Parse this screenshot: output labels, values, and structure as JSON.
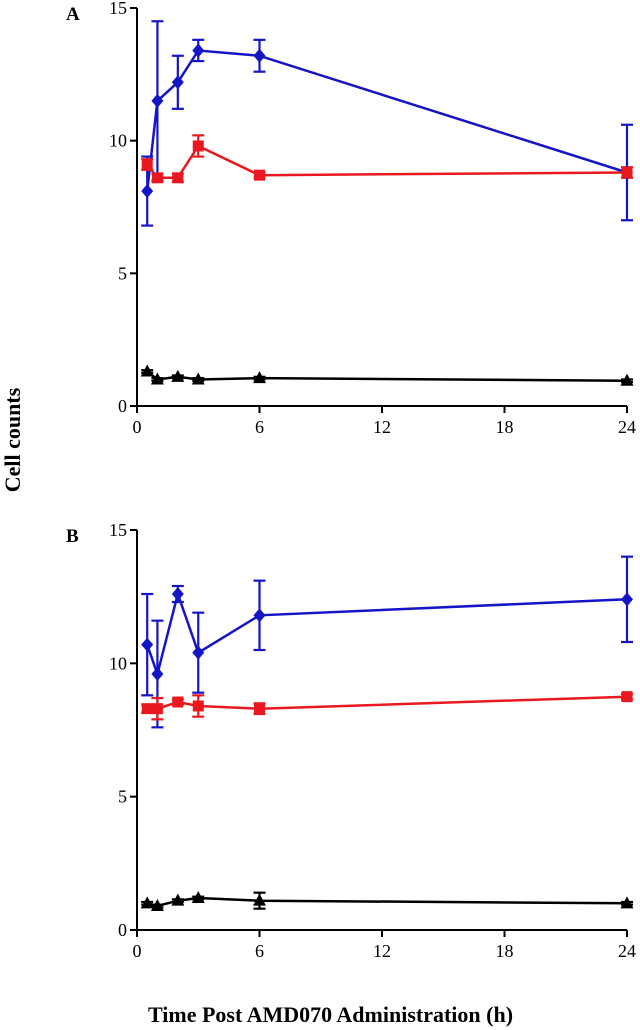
{
  "figure": {
    "ylabel": "Cell counts",
    "xlabel": "Time Post AMD070 Administration (h)"
  },
  "colors": {
    "blue": "#1515c8",
    "red": "#e8181e",
    "black": "#000000"
  },
  "chart_data": [
    {
      "type": "line",
      "panel": "A",
      "xlim": [
        0,
        24
      ],
      "ylim": [
        0,
        15
      ],
      "x_ticks": [
        "0",
        "6",
        "12",
        "18",
        "24"
      ],
      "y_ticks": [
        "0",
        "5",
        "10",
        "15"
      ],
      "grid": false,
      "series": [
        {
          "color": "blue",
          "marker": "diamond",
          "x": [
            0.5,
            1,
            2,
            3,
            6,
            24
          ],
          "y": [
            8.1,
            11.5,
            12.2,
            13.4,
            13.2,
            8.8
          ],
          "err": [
            1.3,
            3.0,
            1.0,
            0.4,
            0.6,
            1.8
          ]
        },
        {
          "color": "red",
          "marker": "square",
          "x": [
            0.5,
            1,
            2,
            3,
            6,
            24
          ],
          "y": [
            9.1,
            8.6,
            8.6,
            9.8,
            8.7,
            8.8
          ],
          "err": [
            0.2,
            0.15,
            0.15,
            0.4,
            0.1,
            0.2
          ]
        },
        {
          "color": "black",
          "marker": "triangle",
          "x": [
            0.5,
            1,
            2,
            3,
            6,
            24
          ],
          "y": [
            1.3,
            1.0,
            1.1,
            1.0,
            1.05,
            0.95
          ],
          "err": [
            0.05,
            0.05,
            0.05,
            0.05,
            0.05,
            0.05
          ]
        }
      ]
    },
    {
      "type": "line",
      "panel": "B",
      "xlim": [
        0,
        24
      ],
      "ylim": [
        0,
        15
      ],
      "x_ticks": [
        "0",
        "6",
        "12",
        "18",
        "24"
      ],
      "y_ticks": [
        "0",
        "5",
        "10",
        "15"
      ],
      "grid": false,
      "series": [
        {
          "color": "blue",
          "marker": "diamond",
          "x": [
            0.5,
            1,
            2,
            3,
            6,
            24
          ],
          "y": [
            10.7,
            9.6,
            12.6,
            10.4,
            11.8,
            12.4
          ],
          "err": [
            1.9,
            2.0,
            0.3,
            1.5,
            1.3,
            1.6
          ]
        },
        {
          "color": "red",
          "marker": "square",
          "x": [
            0.5,
            1,
            2,
            3,
            6,
            24
          ],
          "y": [
            8.3,
            8.3,
            8.55,
            8.4,
            8.3,
            8.75
          ],
          "err": [
            0.15,
            0.4,
            0.1,
            0.4,
            0.2,
            0.1
          ]
        },
        {
          "color": "black",
          "marker": "triangle",
          "x": [
            0.5,
            1,
            2,
            3,
            6,
            24
          ],
          "y": [
            1.0,
            0.9,
            1.1,
            1.2,
            1.1,
            1.0
          ],
          "err": [
            0.05,
            0.05,
            0.05,
            0.05,
            0.3,
            0.05
          ]
        }
      ]
    }
  ]
}
